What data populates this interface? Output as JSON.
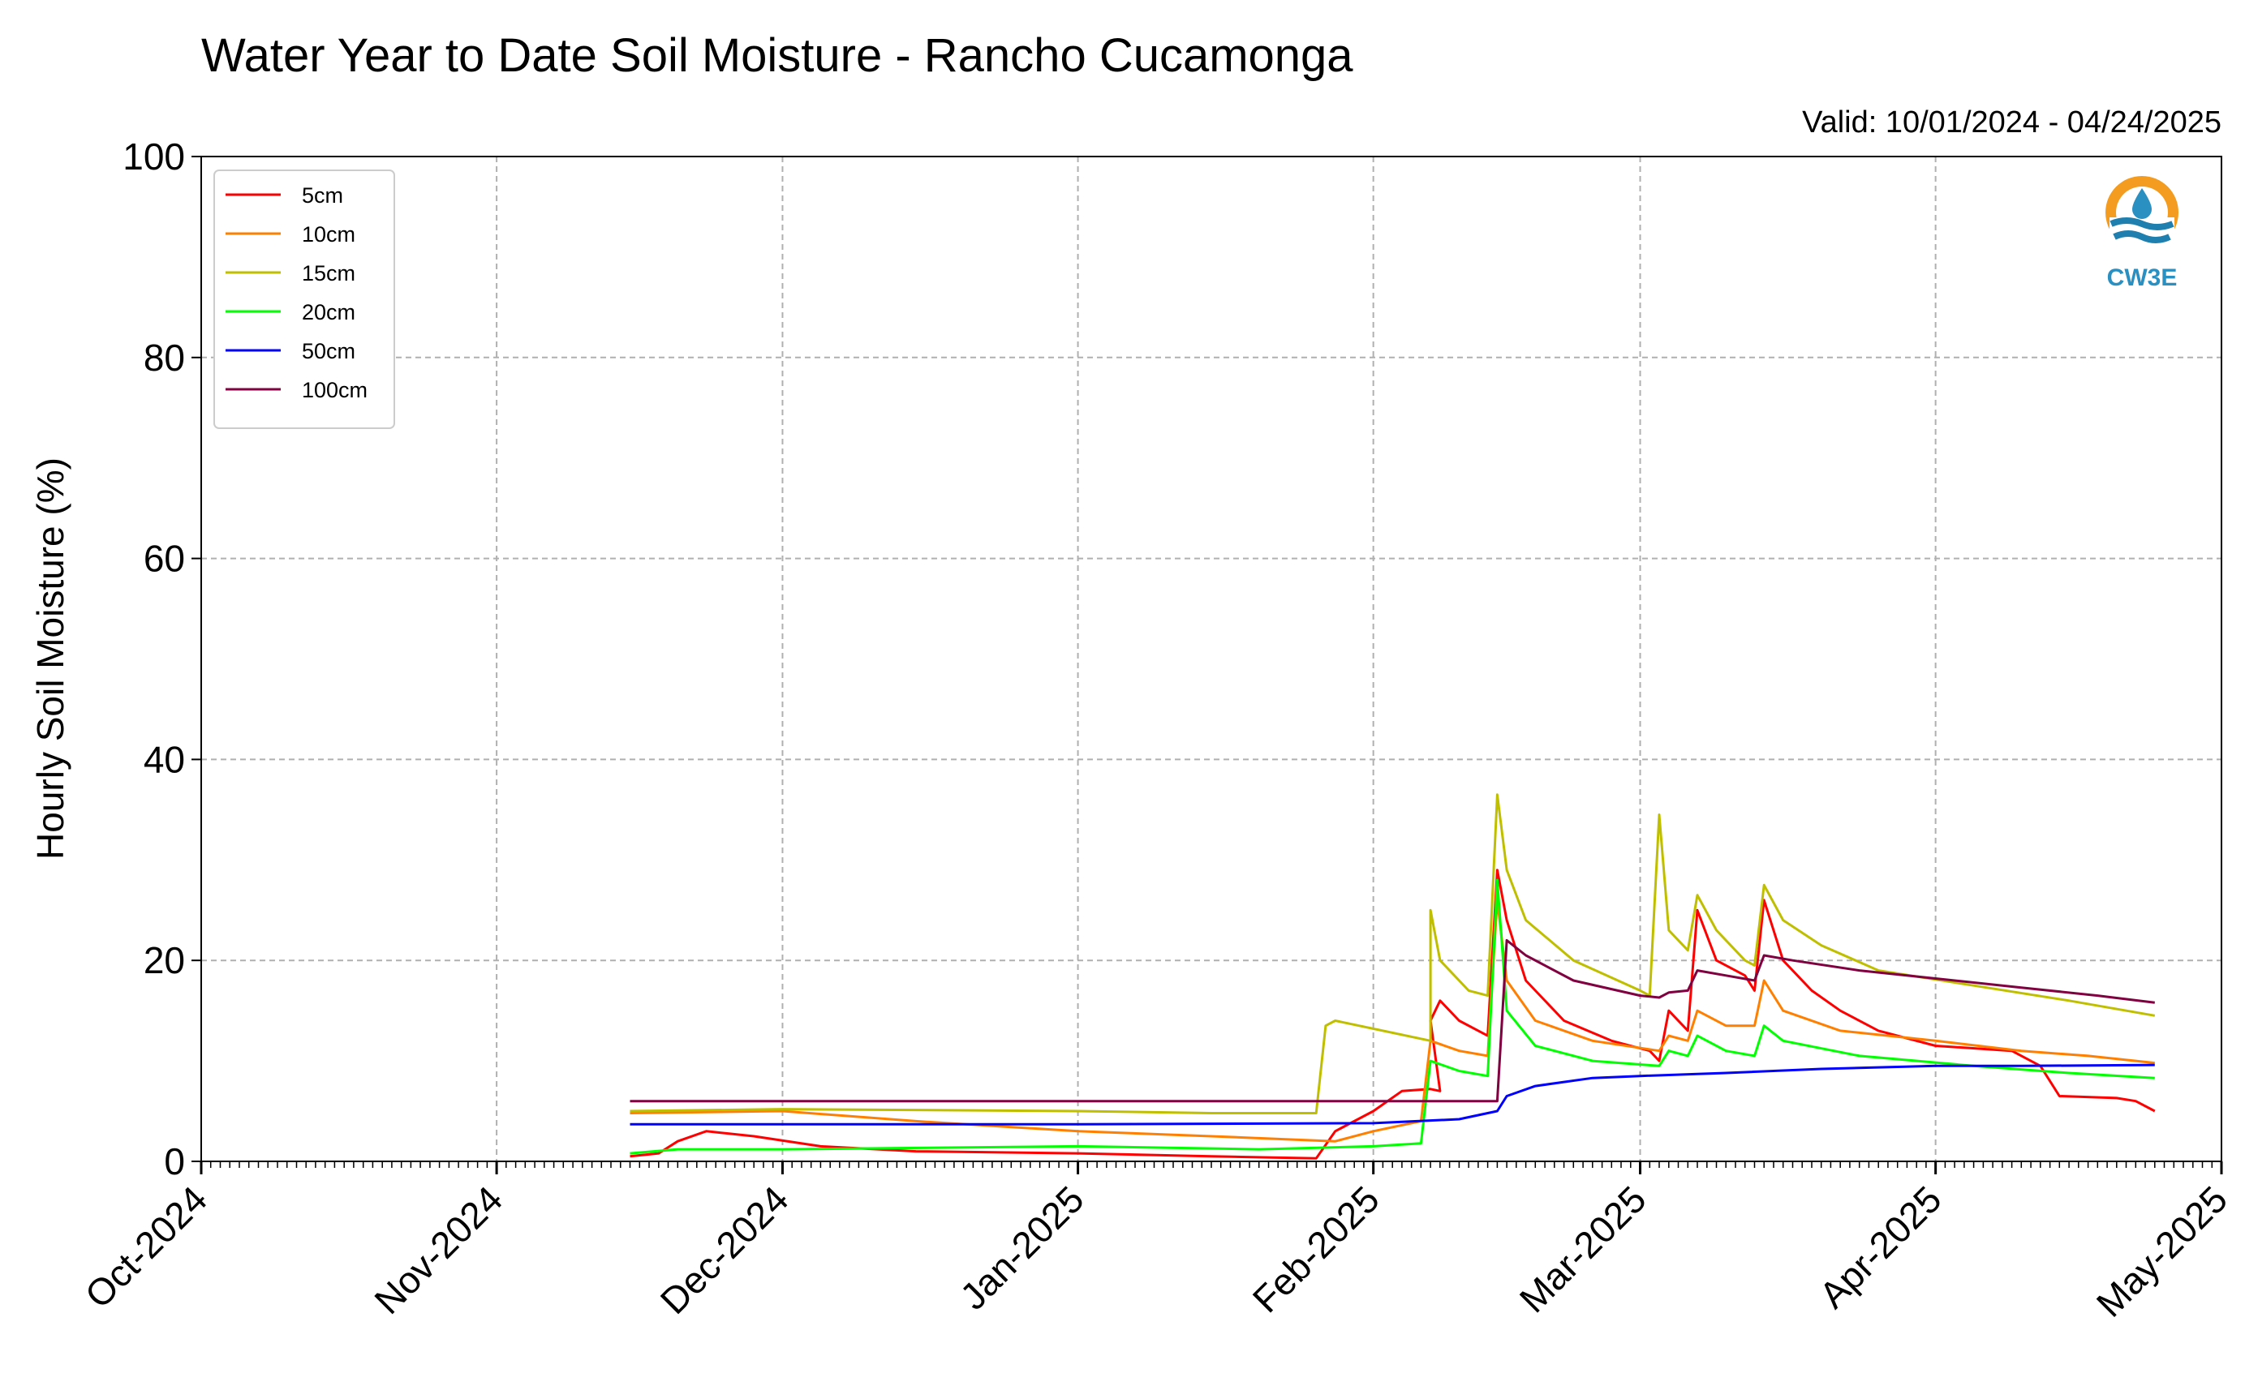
{
  "chart_data": {
    "type": "line",
    "title": "Water Year to Date Soil Moisture - Rancho Cucamonga",
    "subtitle": "Valid: 10/01/2024 - 04/24/2025",
    "ylabel": "Hourly Soil Moisture (%)",
    "xlabel": "",
    "ylim": [
      0,
      100
    ],
    "xlim": [
      "2024-10-01",
      "2025-05-01"
    ],
    "yticks": [
      "0",
      "20",
      "40",
      "60",
      "80",
      "100"
    ],
    "xticks": [
      {
        "date": "2024-10-01",
        "label": "Oct-2024"
      },
      {
        "date": "2024-11-01",
        "label": "Nov-2024"
      },
      {
        "date": "2024-12-01",
        "label": "Dec-2024"
      },
      {
        "date": "2025-01-01",
        "label": "Jan-2025"
      },
      {
        "date": "2025-02-01",
        "label": "Feb-2025"
      },
      {
        "date": "2025-03-01",
        "label": "Mar-2025"
      },
      {
        "date": "2025-04-01",
        "label": "Apr-2025"
      },
      {
        "date": "2025-05-01",
        "label": "May-2025"
      }
    ],
    "grid": true,
    "legend_position": "top-left",
    "logo_text": "CW3E",
    "series": [
      {
        "name": "5cm",
        "color": "#ff0000",
        "points": [
          [
            "2024-11-15",
            0.5
          ],
          [
            "2024-11-18",
            0.8
          ],
          [
            "2024-11-20",
            2.0
          ],
          [
            "2024-11-23",
            3.0
          ],
          [
            "2024-11-28",
            2.5
          ],
          [
            "2024-12-05",
            1.5
          ],
          [
            "2024-12-15",
            1.0
          ],
          [
            "2025-01-01",
            0.8
          ],
          [
            "2025-01-15",
            0.5
          ],
          [
            "2025-01-26",
            0.3
          ],
          [
            "2025-01-28",
            3.0
          ],
          [
            "2025-02-01",
            5.0
          ],
          [
            "2025-02-04",
            7.0
          ],
          [
            "2025-02-07",
            7.2
          ],
          [
            "2025-02-08",
            7.0
          ],
          [
            "2025-02-07",
            14.0
          ],
          [
            "2025-02-08",
            16.0
          ],
          [
            "2025-02-10",
            14.0
          ],
          [
            "2025-02-13",
            12.5
          ],
          [
            "2025-02-14",
            29.0
          ],
          [
            "2025-02-15",
            24.0
          ],
          [
            "2025-02-17",
            18.0
          ],
          [
            "2025-02-21",
            14.0
          ],
          [
            "2025-02-26",
            12.0
          ],
          [
            "2025-03-02",
            11.0
          ],
          [
            "2025-03-03",
            10.0
          ],
          [
            "2025-03-04",
            15.0
          ],
          [
            "2025-03-06",
            13.0
          ],
          [
            "2025-03-07",
            25.0
          ],
          [
            "2025-03-09",
            20.0
          ],
          [
            "2025-03-12",
            18.5
          ],
          [
            "2025-03-13",
            17.0
          ],
          [
            "2025-03-14",
            26.0
          ],
          [
            "2025-03-16",
            20.0
          ],
          [
            "2025-03-19",
            17.0
          ],
          [
            "2025-03-22",
            15.0
          ],
          [
            "2025-03-26",
            13.0
          ],
          [
            "2025-04-01",
            11.5
          ],
          [
            "2025-04-09",
            11.0
          ],
          [
            "2025-04-12",
            9.5
          ],
          [
            "2025-04-14",
            6.5
          ],
          [
            "2025-04-20",
            6.3
          ],
          [
            "2025-04-22",
            6.0
          ],
          [
            "2025-04-24",
            5.0
          ]
        ]
      },
      {
        "name": "10cm",
        "color": "#ff8000",
        "points": [
          [
            "2024-11-15",
            4.8
          ],
          [
            "2024-12-01",
            5.0
          ],
          [
            "2024-12-15",
            4.0
          ],
          [
            "2025-01-01",
            3.0
          ],
          [
            "2025-01-15",
            2.5
          ],
          [
            "2025-01-28",
            2.0
          ],
          [
            "2025-02-01",
            3.0
          ],
          [
            "2025-02-06",
            4.0
          ],
          [
            "2025-02-07",
            12.0
          ],
          [
            "2025-02-10",
            11.0
          ],
          [
            "2025-02-13",
            10.5
          ],
          [
            "2025-02-14",
            26.0
          ],
          [
            "2025-02-15",
            18.0
          ],
          [
            "2025-02-18",
            14.0
          ],
          [
            "2025-02-24",
            12.0
          ],
          [
            "2025-03-03",
            11.0
          ],
          [
            "2025-03-04",
            12.5
          ],
          [
            "2025-03-06",
            12.0
          ],
          [
            "2025-03-07",
            15.0
          ],
          [
            "2025-03-10",
            13.5
          ],
          [
            "2025-03-13",
            13.5
          ],
          [
            "2025-03-14",
            18.0
          ],
          [
            "2025-03-16",
            15.0
          ],
          [
            "2025-03-22",
            13.0
          ],
          [
            "2025-04-01",
            12.0
          ],
          [
            "2025-04-10",
            11.0
          ],
          [
            "2025-04-17",
            10.5
          ],
          [
            "2025-04-24",
            9.8
          ]
        ]
      },
      {
        "name": "15cm",
        "color": "#bfbf00",
        "points": [
          [
            "2024-11-15",
            5.0
          ],
          [
            "2024-12-01",
            5.2
          ],
          [
            "2025-01-01",
            5.0
          ],
          [
            "2025-01-15",
            4.8
          ],
          [
            "2025-01-26",
            4.8
          ],
          [
            "2025-01-27",
            13.5
          ],
          [
            "2025-01-28",
            14.0
          ],
          [
            "2025-02-07",
            12.0
          ],
          [
            "2025-02-07",
            25.0
          ],
          [
            "2025-02-08",
            20.0
          ],
          [
            "2025-02-11",
            17.0
          ],
          [
            "2025-02-13",
            16.5
          ],
          [
            "2025-02-14",
            36.5
          ],
          [
            "2025-02-15",
            29.0
          ],
          [
            "2025-02-17",
            24.0
          ],
          [
            "2025-02-22",
            20.0
          ],
          [
            "2025-03-01",
            17.0
          ],
          [
            "2025-03-02",
            16.5
          ],
          [
            "2025-03-03",
            34.5
          ],
          [
            "2025-03-04",
            23.0
          ],
          [
            "2025-03-06",
            21.0
          ],
          [
            "2025-03-07",
            26.5
          ],
          [
            "2025-03-09",
            23.0
          ],
          [
            "2025-03-12",
            20.0
          ],
          [
            "2025-03-13",
            19.5
          ],
          [
            "2025-03-14",
            27.5
          ],
          [
            "2025-03-16",
            24.0
          ],
          [
            "2025-03-20",
            21.5
          ],
          [
            "2025-03-26",
            19.0
          ],
          [
            "2025-04-05",
            17.5
          ],
          [
            "2025-04-15",
            16.0
          ],
          [
            "2025-04-24",
            14.5
          ]
        ]
      },
      {
        "name": "20cm",
        "color": "#00ff00",
        "points": [
          [
            "2024-11-15",
            0.8
          ],
          [
            "2024-11-20",
            1.2
          ],
          [
            "2024-12-01",
            1.2
          ],
          [
            "2025-01-01",
            1.5
          ],
          [
            "2025-01-20",
            1.2
          ],
          [
            "2025-02-01",
            1.5
          ],
          [
            "2025-02-06",
            1.8
          ],
          [
            "2025-02-07",
            10.0
          ],
          [
            "2025-02-10",
            9.0
          ],
          [
            "2025-02-13",
            8.5
          ],
          [
            "2025-02-14",
            28.0
          ],
          [
            "2025-02-15",
            15.0
          ],
          [
            "2025-02-18",
            11.5
          ],
          [
            "2025-02-24",
            10.0
          ],
          [
            "2025-03-03",
            9.5
          ],
          [
            "2025-03-04",
            11.0
          ],
          [
            "2025-03-06",
            10.5
          ],
          [
            "2025-03-07",
            12.5
          ],
          [
            "2025-03-10",
            11.0
          ],
          [
            "2025-03-13",
            10.5
          ],
          [
            "2025-03-14",
            13.5
          ],
          [
            "2025-03-16",
            12.0
          ],
          [
            "2025-03-24",
            10.5
          ],
          [
            "2025-04-05",
            9.5
          ],
          [
            "2025-04-15",
            8.8
          ],
          [
            "2025-04-24",
            8.3
          ]
        ]
      },
      {
        "name": "50cm",
        "color": "#0000ff",
        "points": [
          [
            "2024-11-15",
            3.7
          ],
          [
            "2024-12-01",
            3.7
          ],
          [
            "2025-01-01",
            3.7
          ],
          [
            "2025-02-01",
            3.8
          ],
          [
            "2025-02-10",
            4.2
          ],
          [
            "2025-02-14",
            5.0
          ],
          [
            "2025-02-15",
            6.5
          ],
          [
            "2025-02-18",
            7.5
          ],
          [
            "2025-02-24",
            8.3
          ],
          [
            "2025-03-01",
            8.5
          ],
          [
            "2025-03-10",
            8.8
          ],
          [
            "2025-03-20",
            9.2
          ],
          [
            "2025-04-01",
            9.5
          ],
          [
            "2025-04-10",
            9.5
          ],
          [
            "2025-04-24",
            9.6
          ]
        ]
      },
      {
        "name": "100cm",
        "color": "#800040",
        "points": [
          [
            "2024-11-15",
            6.0
          ],
          [
            "2025-01-01",
            6.0
          ],
          [
            "2025-02-14",
            6.0
          ],
          [
            "2025-02-15",
            22.0
          ],
          [
            "2025-02-17",
            20.5
          ],
          [
            "2025-02-22",
            18.0
          ],
          [
            "2025-03-01",
            16.5
          ],
          [
            "2025-03-03",
            16.3
          ],
          [
            "2025-03-04",
            16.8
          ],
          [
            "2025-03-06",
            17.0
          ],
          [
            "2025-03-07",
            19.0
          ],
          [
            "2025-03-10",
            18.5
          ],
          [
            "2025-03-13",
            18.0
          ],
          [
            "2025-03-14",
            20.5
          ],
          [
            "2025-03-17",
            20.0
          ],
          [
            "2025-03-24",
            19.0
          ],
          [
            "2025-04-01",
            18.2
          ],
          [
            "2025-04-10",
            17.3
          ],
          [
            "2025-04-18",
            16.5
          ],
          [
            "2025-04-24",
            15.8
          ]
        ]
      }
    ]
  }
}
